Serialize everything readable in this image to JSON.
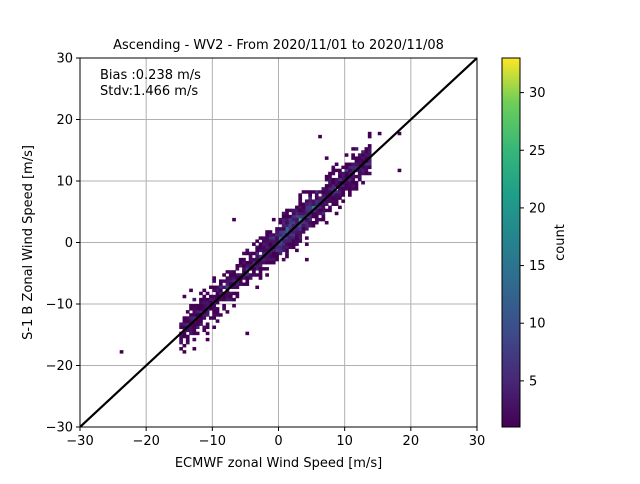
{
  "chart_data": {
    "type": "heatmap",
    "title": "Ascending - WV2 - From 2020/11/01 to 2020/11/08",
    "xlabel": "ECMWF zonal Wind Speed [m/s]",
    "ylabel": "S-1 B Zonal Wind Speed [m/s]",
    "xlim": [
      -30,
      30
    ],
    "ylim": [
      -30,
      30
    ],
    "xticks": [
      "−30",
      "−20",
      "−10",
      "0",
      "10",
      "20",
      "30"
    ],
    "yticks": [
      "−30",
      "−20",
      "−10",
      "0",
      "10",
      "20",
      "30"
    ],
    "xtick_values": [
      -30,
      -20,
      -10,
      0,
      10,
      20,
      30
    ],
    "ytick_values": [
      -30,
      -20,
      -10,
      0,
      10,
      20,
      30
    ],
    "grid": true,
    "annotations": [
      "Bias :0.238 m/s",
      "Stdv:1.466 m/s"
    ],
    "reference_line": {
      "from": [
        -30,
        -30
      ],
      "to": [
        30,
        30
      ],
      "color": "#000000"
    },
    "colorbar": {
      "label": "count",
      "min": 1,
      "max": 33,
      "ticks": [
        "5",
        "10",
        "15",
        "20",
        "25",
        "30"
      ],
      "tick_values": [
        5,
        10,
        15,
        20,
        25,
        30
      ],
      "colormap": "viridis"
    },
    "density": {
      "bin_size": 0.5,
      "spread": 1.466,
      "bias": 0.238,
      "clusters": [
        {
          "x": -8,
          "y": -7.5,
          "count": 6
        },
        {
          "x": -5,
          "y": -5,
          "count": 8
        },
        {
          "x": 0,
          "y": 0,
          "count": 8
        },
        {
          "x": 3,
          "y": 3.5,
          "count": 18
        },
        {
          "x": 5,
          "y": 5.5,
          "count": 10
        },
        {
          "x": 8,
          "y": 8,
          "count": 6
        },
        {
          "x": 11,
          "y": 11,
          "count": 3
        }
      ],
      "outliers": [
        [
          -24,
          -18
        ],
        [
          -14,
          -15.5
        ],
        [
          -10,
          -14
        ],
        [
          -5,
          -15
        ],
        [
          -7,
          3.5
        ],
        [
          -5,
          -1.5
        ],
        [
          6,
          17
        ],
        [
          18,
          17.5
        ],
        [
          18,
          11.5
        ],
        [
          15,
          17.5
        ],
        [
          4,
          -3
        ],
        [
          7,
          13.5
        ],
        [
          11,
          14
        ]
      ]
    }
  }
}
